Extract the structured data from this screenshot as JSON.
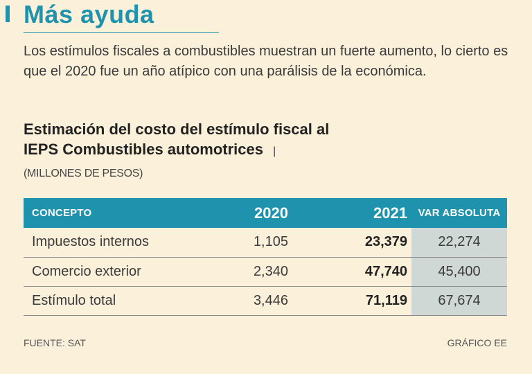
{
  "colors": {
    "accent": "#1f93ae",
    "background": "#fbf0da",
    "highlight_column": "#cfd8d4"
  },
  "headline": "Más ayuda",
  "intro": "Los estímulos fiscales a combustibles muestran un fuerte aumento, lo cierto es que el 2020 fue un año atípico con una parálisis de la económica.",
  "chart_data": {
    "type": "table",
    "title": "Estimación del costo del estímulo fiscal al IEPS Combustibles automotrices",
    "units_separator": "|",
    "units": "(MILLONES DE PESOS)",
    "columns": [
      "CONCEPTO",
      "2020",
      "2021",
      "VAR ABSOLUTA"
    ],
    "rows": [
      {
        "concept": "Impuestos internos",
        "v2020": "1,105",
        "v2021": "23,379",
        "var": "22,274"
      },
      {
        "concept": "Comercio exterior",
        "v2020": "2,340",
        "v2021": "47,740",
        "var": "45,400"
      },
      {
        "concept": "Estímulo total",
        "v2020": "3,446",
        "v2021": "71,119",
        "var": "67,674"
      }
    ],
    "source": "FUENTE: SAT",
    "credit": "GRÁFICO EE"
  }
}
